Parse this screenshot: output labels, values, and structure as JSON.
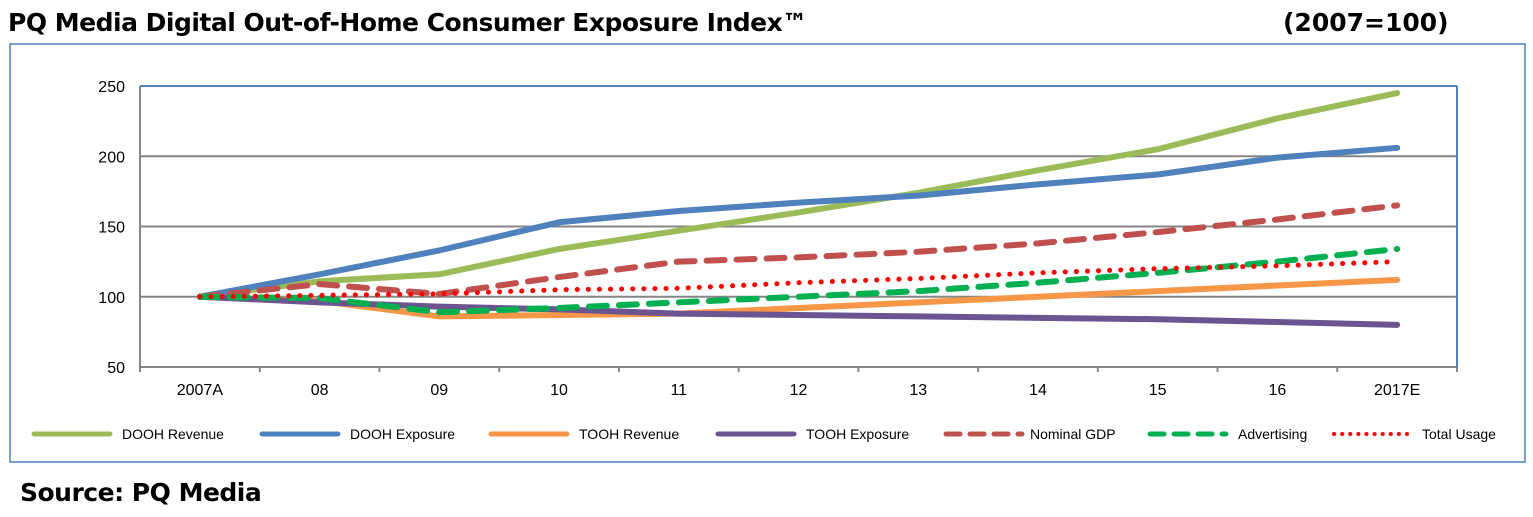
{
  "title": "PQ Media Digital Out-of-Home Consumer Exposure Index™",
  "base_note": "(2007=100)",
  "source": "Source: PQ Media",
  "chart_data": {
    "type": "line",
    "title": "PQ Media Digital Out-of-Home Consumer Exposure Index™",
    "categories": [
      "2007A",
      "08",
      "09",
      "10",
      "11",
      "12",
      "13",
      "14",
      "15",
      "16",
      "2017E"
    ],
    "ylim": [
      50,
      250
    ],
    "yticks": [
      50,
      100,
      150,
      200,
      250
    ],
    "grid": true,
    "legend": "bottom",
    "series": [
      {
        "name": "DOOH Revenue",
        "color": "#9BBB59",
        "style": "solid",
        "values": [
          100,
          111,
          116,
          134,
          147,
          160,
          174,
          190,
          205,
          227,
          245
        ]
      },
      {
        "name": "DOOH Exposure",
        "color": "#4F81BD",
        "style": "solid",
        "values": [
          100,
          116,
          133,
          153,
          161,
          167,
          172,
          180,
          187,
          199,
          206
        ]
      },
      {
        "name": "TOOH Revenue",
        "color": "#F79646",
        "style": "solid",
        "values": [
          100,
          97,
          86,
          87,
          88,
          92,
          96,
          100,
          104,
          108,
          112
        ]
      },
      {
        "name": "TOOH Exposure",
        "color": "#6B548F",
        "style": "solid",
        "values": [
          100,
          96,
          93,
          91,
          88,
          87,
          86,
          85,
          84,
          82,
          80
        ]
      },
      {
        "name": "Nominal GDP",
        "color": "#C0504D",
        "style": "dash",
        "values": [
          100,
          109,
          102,
          114,
          125,
          128,
          132,
          138,
          146,
          155,
          165
        ]
      },
      {
        "name": "Advertising",
        "color": "#00B050",
        "style": "dash",
        "values": [
          100,
          99,
          89,
          92,
          96,
          100,
          104,
          110,
          117,
          125,
          134
        ]
      },
      {
        "name": "Total Usage",
        "color": "#FF0000",
        "style": "dot",
        "values": [
          100,
          101,
          102,
          105,
          106,
          110,
          113,
          117,
          120,
          122,
          125
        ]
      }
    ]
  }
}
